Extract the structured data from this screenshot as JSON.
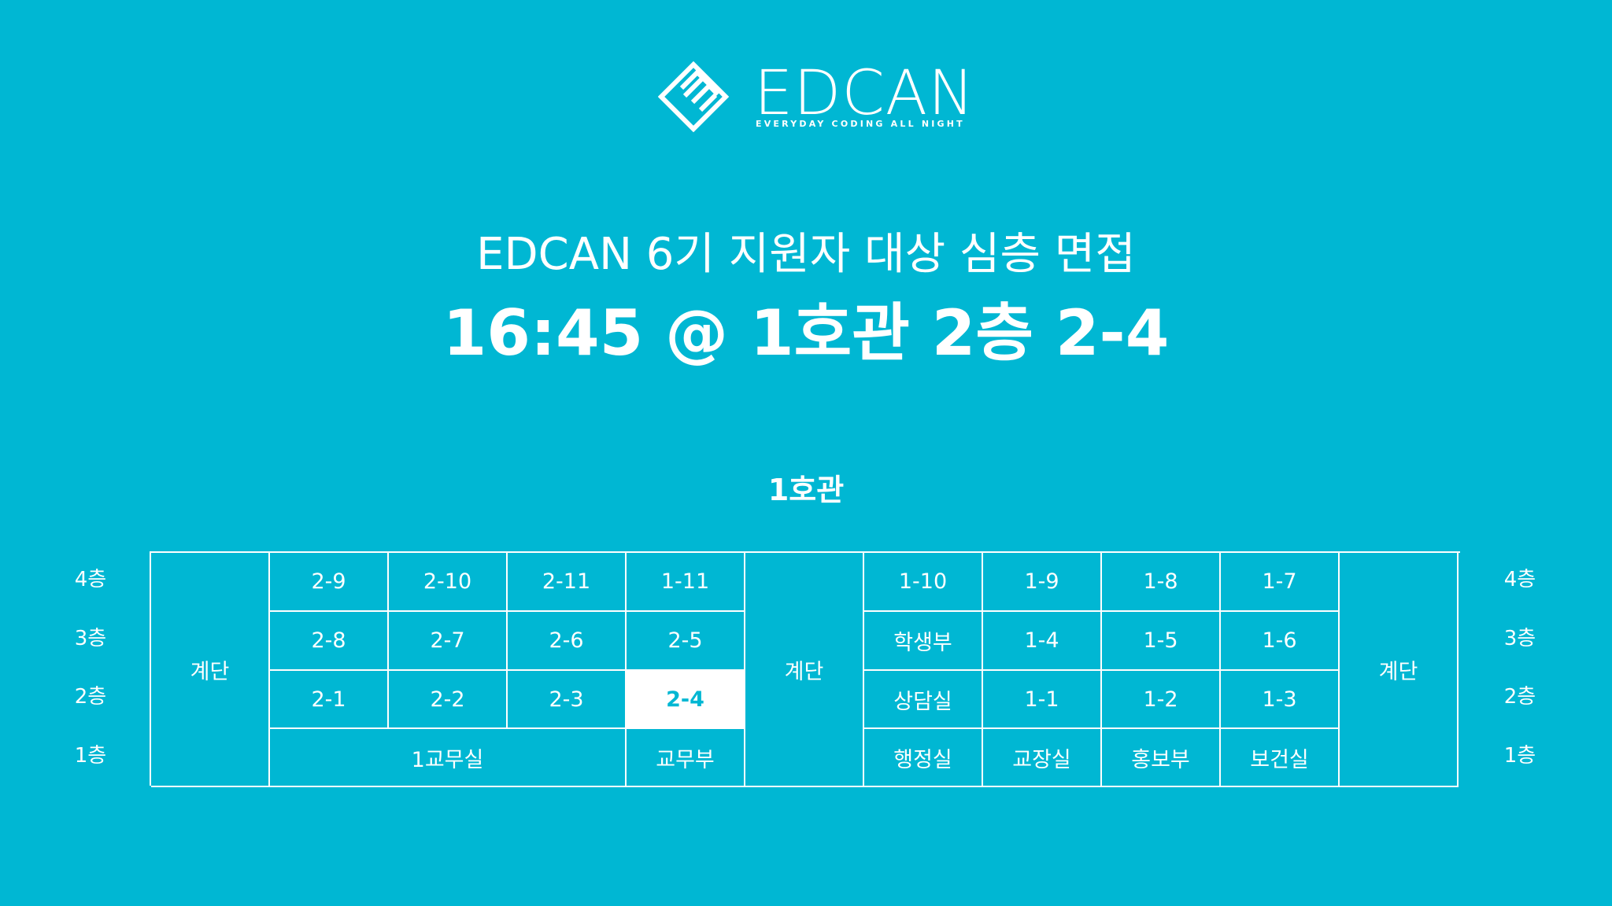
{
  "logo": {
    "wordmark": "EDCAN",
    "tagline": "EVERYDAY CODING ALL NIGHT"
  },
  "subtitle": "EDCAN 6기 지원자 대상 심층 면접",
  "headline": "16:45 @ 1호관 2층 2-4",
  "building_label": "1호관",
  "floors": {
    "left": [
      "4층",
      "3층",
      "2층",
      "1층"
    ],
    "right": [
      "4층",
      "3층",
      "2층",
      "1층"
    ]
  },
  "rooms": {
    "stairs_left": "계단",
    "stairs_center": "계단",
    "stairs_right": "계단",
    "floor4": [
      "2-9",
      "2-10",
      "2-11",
      "1-11",
      "1-10",
      "1-9",
      "1-8",
      "1-7"
    ],
    "floor3": [
      "2-8",
      "2-7",
      "2-6",
      "2-5",
      "학생부",
      "1-4",
      "1-5",
      "1-6"
    ],
    "floor2": [
      "2-1",
      "2-2",
      "2-3",
      "2-4",
      "상담실",
      "1-1",
      "1-2",
      "1-3"
    ],
    "floor1": [
      "1교무실",
      "교무부",
      "행정실",
      "교장실",
      "홍보부",
      "보건실"
    ]
  },
  "highlighted_room": "2-4",
  "colors": {
    "background": "#00B7D3",
    "foreground": "#FFFFFF"
  }
}
